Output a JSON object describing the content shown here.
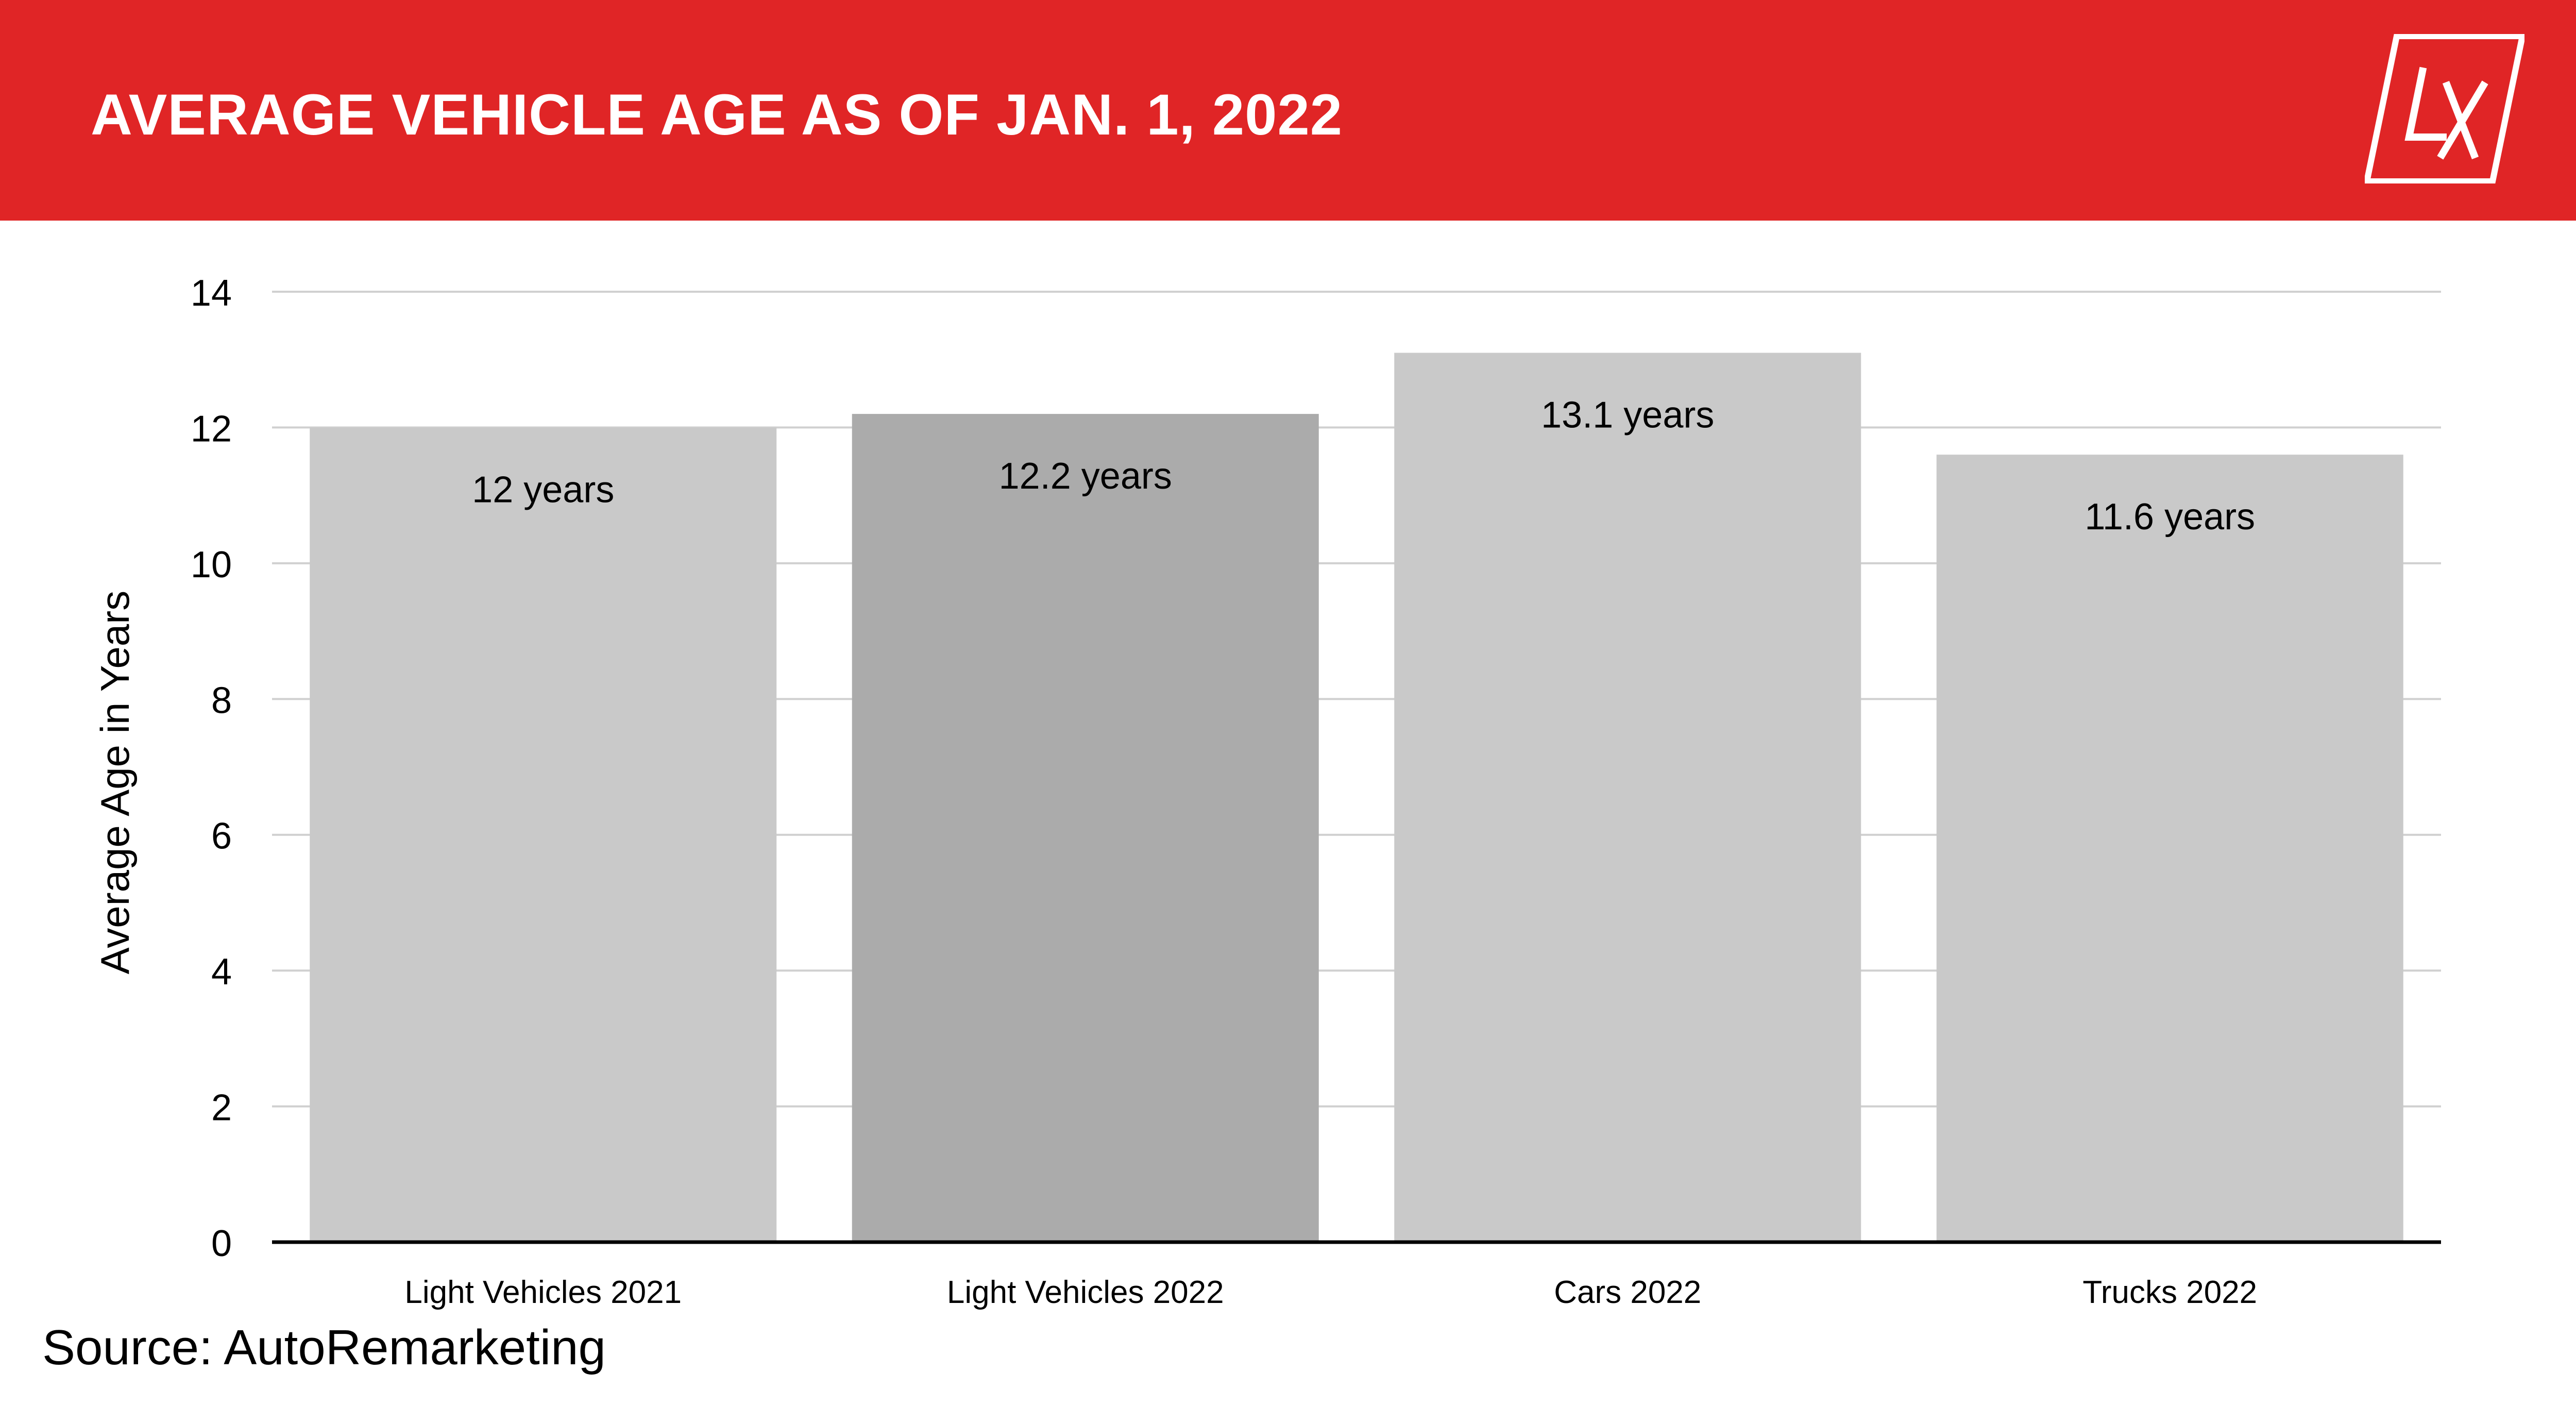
{
  "header": {
    "title": "AVERAGE VEHICLE AGE AS OF JAN. 1, 2022",
    "background_color": "#e02526",
    "logo_text": "LX"
  },
  "source": "Source: AutoRemarketing",
  "colors": {
    "bar": "#c9c9c9",
    "bar_highlight": "#ababab",
    "grid": "#d0d0d0",
    "axis": "#000000"
  },
  "chart_data": {
    "type": "bar",
    "title": "AVERAGE VEHICLE AGE AS OF JAN. 1, 2022",
    "xlabel": "",
    "ylabel": "Average Age in Years",
    "categories": [
      "Light Vehicles 2021",
      "Light Vehicles 2022",
      "Cars 2022",
      "Trucks 2022"
    ],
    "values": [
      12,
      12.2,
      13.1,
      11.6
    ],
    "data_labels": [
      "12 years",
      "12.2 years",
      "13.1 years",
      "11.6 years"
    ],
    "highlight_index": 1,
    "ylim": [
      0,
      14
    ],
    "yticks": [
      0,
      2,
      4,
      6,
      8,
      10,
      12,
      14
    ],
    "grid": true,
    "legend": "none"
  }
}
